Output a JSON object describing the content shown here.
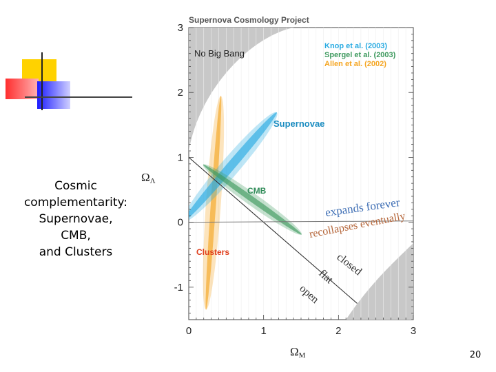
{
  "slide": {
    "caption_lines": [
      "Cosmic",
      "complementarity:",
      "Supernovae,",
      "CMB,",
      "and Clusters"
    ],
    "page_number": "20"
  },
  "colors": {
    "supernovae": "#29abe2",
    "cmb": "#3f9a5f",
    "clusters": "#f5a623",
    "clusters_label": "#e0401e",
    "excluded_region": "#c8c8c8",
    "deco_yellow": "#ffd200",
    "deco_red": "#ff3b3b",
    "deco_blue": "#2222ee"
  },
  "chart_data": {
    "type": "contour",
    "title": "Supernova Cosmology Project",
    "xlabel": "ΩM",
    "ylabel": "ΩΛ",
    "xlim": [
      0,
      3
    ],
    "ylim": [
      -1.5,
      3
    ],
    "xticks": [
      "0",
      "1",
      "2",
      "3"
    ],
    "yticks": [
      "-1",
      "0",
      "1",
      "2",
      "3"
    ],
    "legend": [
      {
        "label": "Knop et al. (2003)",
        "color": "#29abe2"
      },
      {
        "label": "Spergel et al. (2003)",
        "color": "#3f9a5f"
      },
      {
        "label": "Allen et al. (2002)",
        "color": "#f5a623"
      }
    ],
    "regions": [
      {
        "label": "No Big Bang",
        "color": "#c8c8c8"
      },
      {
        "label": "Supernovae",
        "color": "#29abe2",
        "center": [
          0.55,
          0.85
        ],
        "direction": [
          1,
          1.35
        ],
        "half_length": 1.05,
        "half_width": 0.13,
        "inner_half_width": 0.06
      },
      {
        "label": "CMB",
        "color": "#3f9a5f",
        "center": [
          0.85,
          0.35
        ],
        "direction": [
          1,
          -0.82
        ],
        "half_length": 0.85,
        "half_width": 0.09,
        "inner_half_width": 0.04
      },
      {
        "label": "Clusters",
        "color": "#f5a623",
        "label_color": "#e0401e",
        "center": [
          0.33,
          0.3
        ],
        "direction": [
          0.06,
          1
        ],
        "half_length": 1.65,
        "half_width": 0.1,
        "inner_half_width": 0.035
      }
    ],
    "lines": [
      {
        "name": "flat",
        "points": [
          [
            0,
            1
          ],
          [
            2.25,
            -1.25
          ]
        ]
      },
      {
        "name": "expansion-boundary",
        "points": [
          [
            0,
            0
          ],
          [
            3,
            0.02
          ]
        ]
      }
    ],
    "annotations": [
      "expands forever",
      "recollapses eventually",
      "closed",
      "flat",
      "open"
    ]
  }
}
